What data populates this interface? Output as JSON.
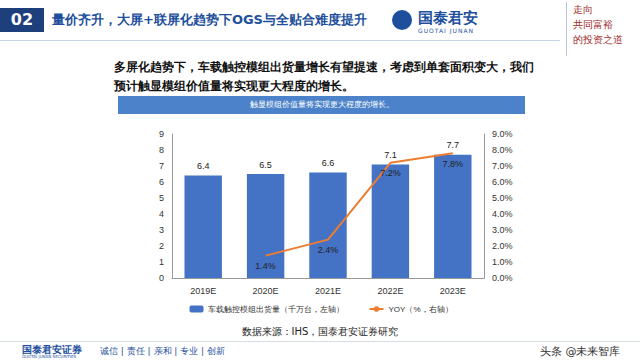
{
  "slide": {
    "section": "02",
    "title": "量价齐升，大屏+联屏化趋势下OGS与全贴合难度提升",
    "logo": "国泰君安",
    "logo_en": "GUOTAI JUNAN",
    "slogan": [
      "走向",
      "共同富裕",
      "的投资之道"
    ],
    "intro": "多屏化趋势下，车载触控模组出货量增长有望提速，考虑到单套面积变大，我们预计触显模组价值量将实现更大程度的增长。",
    "source": "数据来源：IHS，国泰君安证券研究",
    "footer_name": "国泰君安证券",
    "footer_name_en": "GUOTAI JUNAN SECURITIES",
    "footer_motto": "诚信 | 责任 | 亲和 | 专业 | 创新",
    "watermark": "头条 @未来智库"
  },
  "chart_data": {
    "type": "bar",
    "title": "触显模组价值量将实现更大程度的增长。",
    "categories": [
      "2019E",
      "2020E",
      "2021E",
      "2022E",
      "2023E"
    ],
    "series": [
      {
        "name": "车载触控模组出货量（千万台，左轴）",
        "type": "bar",
        "color": "#4472c4",
        "values": [
          6.4,
          6.5,
          6.6,
          7.1,
          7.7
        ]
      },
      {
        "name": "YOY（%，右轴）",
        "type": "line",
        "axis": "y2",
        "color": "#ed7d31",
        "values": [
          null,
          1.4,
          2.4,
          7.2,
          7.8
        ],
        "value_labels": [
          null,
          "1.4%",
          "2.4%",
          "7.2%",
          "7.8%"
        ]
      }
    ],
    "ylim": [
      0,
      9
    ],
    "yticks": [
      0,
      1,
      2,
      3,
      4,
      5,
      6,
      7,
      8,
      9
    ],
    "y2lim": [
      0,
      9
    ],
    "y2ticks": [
      {
        "value": 0,
        "label": "0.0%"
      },
      {
        "value": 1,
        "label": "1.0%"
      },
      {
        "value": 2,
        "label": "2.0%"
      },
      {
        "value": 3,
        "label": "3.0%"
      },
      {
        "value": 4,
        "label": "4.0%"
      },
      {
        "value": 5,
        "label": "5.0%"
      },
      {
        "value": 6,
        "label": "6.0%"
      },
      {
        "value": 7,
        "label": "7.0%"
      },
      {
        "value": 8,
        "label": "8.0%"
      },
      {
        "value": 9,
        "label": "9.0%"
      }
    ],
    "grid": false,
    "legend": "bottom",
    "data_labels": true
  }
}
